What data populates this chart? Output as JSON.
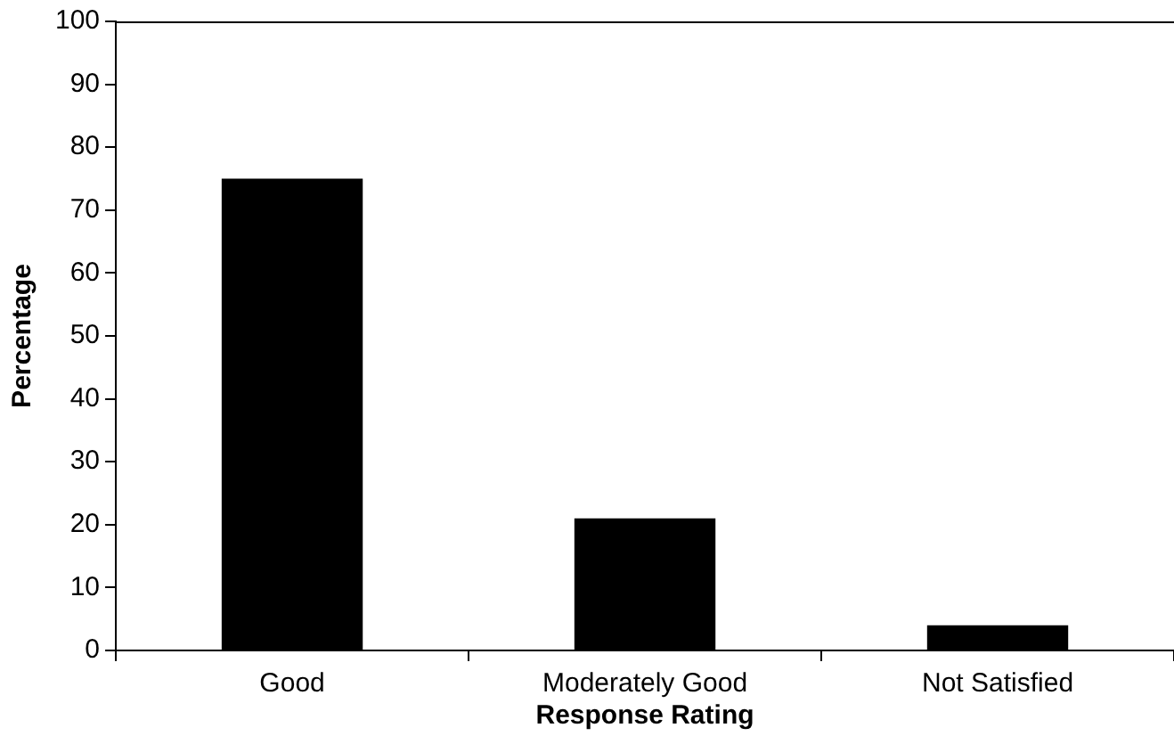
{
  "chart_data": {
    "type": "bar",
    "xlabel": "Response Rating",
    "ylabel": "Percentage",
    "categories": [
      "Good",
      "Moderately Good",
      "Not Satisfied"
    ],
    "values": [
      75,
      21,
      4
    ],
    "color": "#000000",
    "ylim": [
      0,
      100
    ],
    "yticks": [
      0,
      10,
      20,
      30,
      40,
      50,
      60,
      70,
      80,
      90,
      100
    ],
    "grid": false,
    "legend": false
  }
}
